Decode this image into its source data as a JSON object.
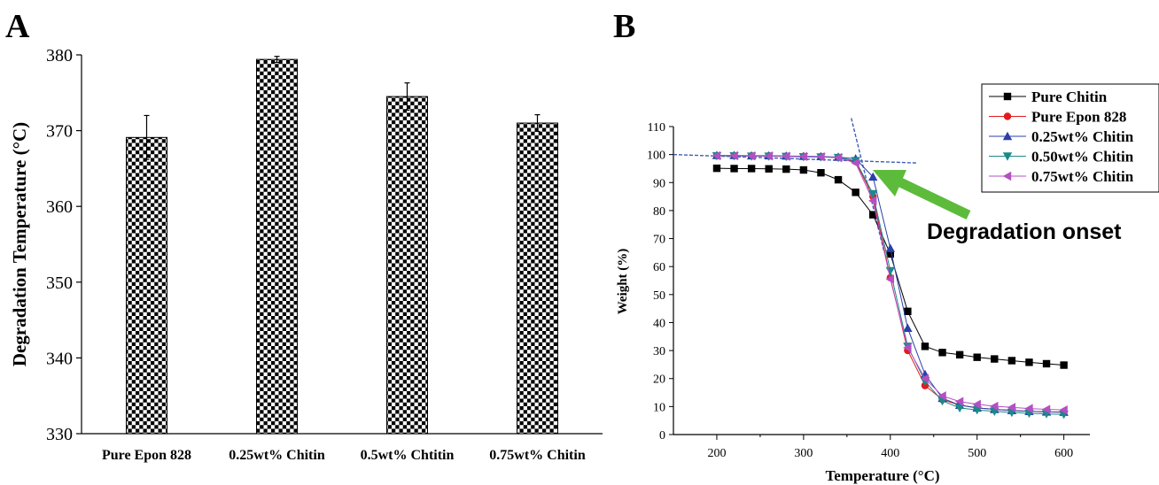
{
  "panels": {
    "a_label": "A",
    "b_label": "B"
  },
  "annotation": {
    "text": "Degradation onset",
    "arrow_color": "#5dbb3b"
  },
  "chart_data": [
    {
      "type": "bar",
      "panel": "A",
      "ylabel": "Degradation Temperature (°C)",
      "xlabel": "",
      "ylim": [
        330,
        380
      ],
      "yticks": [
        "330",
        "340",
        "350",
        "360",
        "370",
        "380"
      ],
      "categories": [
        "Pure Epon 828",
        "0.25wt% Chitin",
        "0.5wt% Chtitin",
        "0.75wt% Chitin"
      ],
      "values": [
        369.1,
        379.4,
        374.5,
        371.0
      ],
      "errors": [
        2.9,
        0.4,
        1.8,
        1.1
      ],
      "bar_pattern": "black-white checker",
      "grid": false
    },
    {
      "type": "line",
      "panel": "B",
      "xlabel": "Temperature (°C)",
      "ylabel": "Weight (%)",
      "xlim": [
        150,
        630
      ],
      "ylim": [
        0,
        110
      ],
      "xticks": [
        "200",
        "300",
        "400",
        "500",
        "600"
      ],
      "yticks": [
        "0",
        "10",
        "20",
        "30",
        "40",
        "50",
        "60",
        "70",
        "80",
        "90",
        "100",
        "110"
      ],
      "x": [
        200,
        220,
        240,
        260,
        280,
        300,
        320,
        340,
        360,
        380,
        400,
        420,
        440,
        460,
        480,
        500,
        520,
        540,
        560,
        580,
        600
      ],
      "legend_position": "top-right",
      "grid": false,
      "series": [
        {
          "name": "Pure Chitin",
          "color": "#000000",
          "marker": "square",
          "values": [
            95.1,
            95.0,
            95.0,
            94.9,
            94.8,
            94.5,
            93.5,
            91.0,
            86.5,
            78.5,
            64.5,
            44.0,
            31.5,
            29.3,
            28.5,
            27.6,
            27.0,
            26.4,
            25.8,
            25.3,
            24.8
          ]
        },
        {
          "name": "Pure Epon 828",
          "color": "#e31a1c",
          "marker": "circle",
          "values": [
            99.6,
            99.6,
            99.5,
            99.5,
            99.4,
            99.3,
            99.2,
            99.0,
            97.5,
            85.0,
            56.0,
            30.0,
            17.5,
            12.5,
            10.5,
            9.5,
            9.0,
            8.6,
            8.3,
            8.1,
            8.0
          ]
        },
        {
          "name": "0.25wt% Chitin",
          "color": "#2b3fa8",
          "marker": "triangle-up",
          "values": [
            99.7,
            99.7,
            99.6,
            99.6,
            99.5,
            99.4,
            99.3,
            99.1,
            98.5,
            92.0,
            66.5,
            38.0,
            21.5,
            13.0,
            10.5,
            9.5,
            9.0,
            8.6,
            8.3,
            8.1,
            8.0
          ]
        },
        {
          "name": "0.50wt% Chitin",
          "color": "#1a8a8a",
          "marker": "triangle-down",
          "values": [
            99.5,
            99.5,
            99.4,
            99.4,
            99.3,
            99.2,
            99.1,
            98.9,
            97.8,
            86.0,
            58.5,
            31.5,
            19.0,
            12.0,
            9.5,
            8.8,
            8.3,
            7.9,
            7.6,
            7.4,
            7.2
          ]
        },
        {
          "name": "0.75wt% Chitin",
          "color": "#b44fc4",
          "marker": "triangle-left",
          "values": [
            99.6,
            99.6,
            99.5,
            99.5,
            99.4,
            99.3,
            99.2,
            98.9,
            97.0,
            83.5,
            55.5,
            31.0,
            20.0,
            13.8,
            11.8,
            10.8,
            10.1,
            9.7,
            9.3,
            9.0,
            8.8
          ]
        }
      ]
    }
  ]
}
